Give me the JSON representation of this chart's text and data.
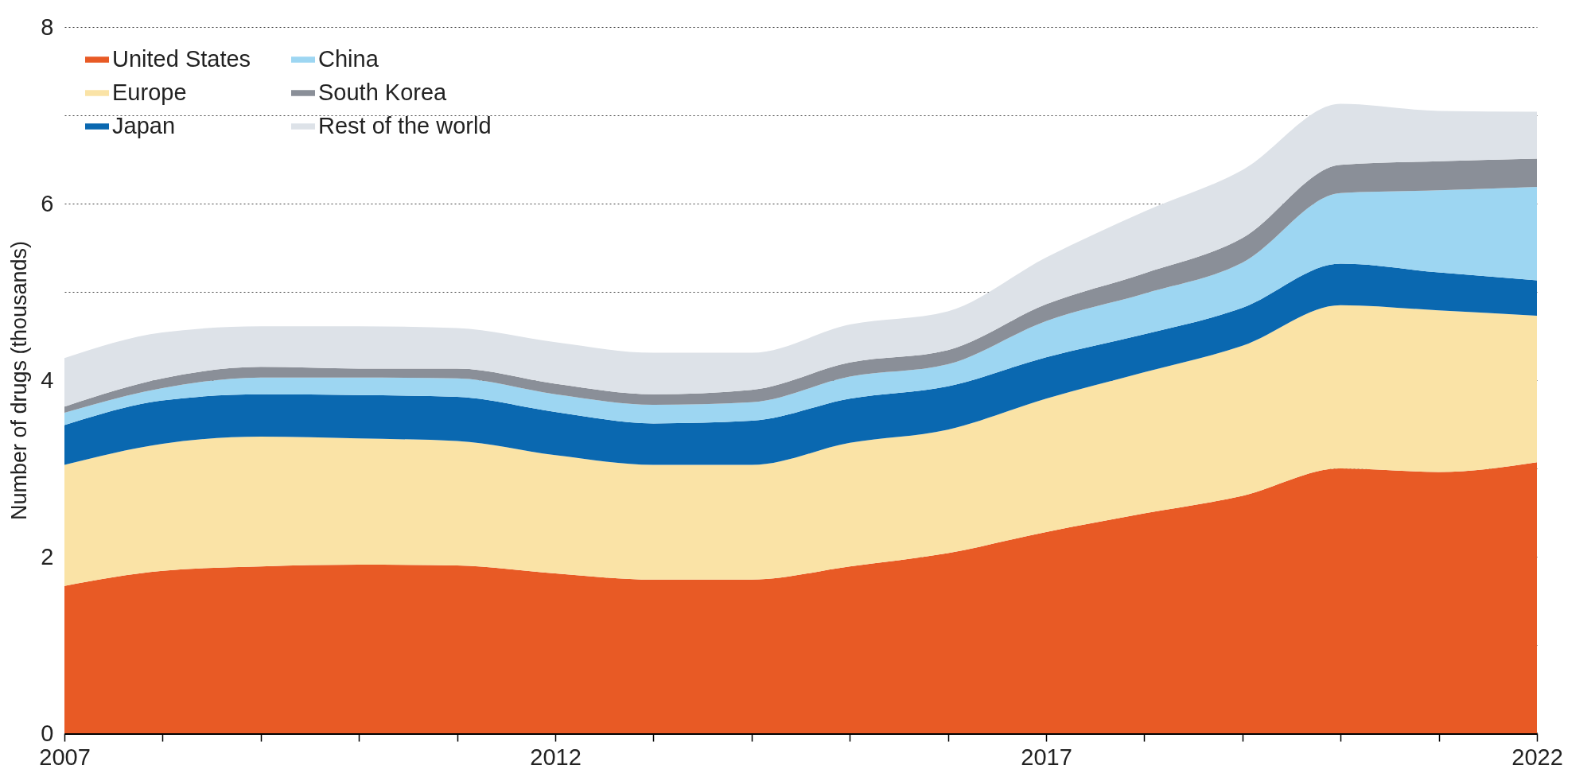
{
  "chart_data": {
    "type": "area",
    "stacked": true,
    "ylabel": "Number of drugs (thousands)",
    "x": [
      2007,
      2008,
      2009,
      2010,
      2011,
      2012,
      2013,
      2014,
      2015,
      2016,
      2017,
      2018,
      2019,
      2020,
      2021,
      2022
    ],
    "xlim": [
      2007,
      2022
    ],
    "xticks": [
      2007,
      {
        "value": 2008,
        "label": null
      },
      {
        "value": 2009,
        "label": null
      },
      {
        "value": 2010,
        "label": null
      },
      {
        "value": 2011,
        "label": null
      },
      2012,
      {
        "value": 2013,
        "label": null
      },
      {
        "value": 2014,
        "label": null
      },
      {
        "value": 2015,
        "label": null
      },
      {
        "value": 2016,
        "label": null
      },
      2017,
      {
        "value": 2018,
        "label": null
      },
      {
        "value": 2019,
        "label": null
      },
      {
        "value": 2020,
        "label": null
      },
      {
        "value": 2021,
        "label": null
      },
      2022
    ],
    "ylim": [
      0,
      8
    ],
    "yticks": [
      0,
      {
        "value": 1,
        "label": null
      },
      2,
      {
        "value": 3,
        "label": null
      },
      4,
      {
        "value": 5,
        "label": null
      },
      6,
      {
        "value": 7,
        "label": null
      },
      8
    ],
    "grid": "y",
    "legend": "top left",
    "series": [
      {
        "name": "United States",
        "color": "#e85a25",
        "values": [
          1.67,
          1.84,
          1.89,
          1.91,
          1.9,
          1.81,
          1.74,
          1.74,
          1.89,
          2.04,
          2.28,
          2.49,
          2.69,
          3.0,
          2.96,
          3.07
        ]
      },
      {
        "name": "Europe",
        "color": "#fae3a6",
        "values": [
          1.37,
          1.44,
          1.47,
          1.43,
          1.41,
          1.34,
          1.3,
          1.3,
          1.4,
          1.4,
          1.51,
          1.6,
          1.7,
          1.85,
          1.83,
          1.66
        ]
      },
      {
        "name": "Japan",
        "color": "#0a68b0",
        "values": [
          0.45,
          0.49,
          0.48,
          0.49,
          0.5,
          0.49,
          0.47,
          0.5,
          0.5,
          0.49,
          0.47,
          0.43,
          0.43,
          0.47,
          0.43,
          0.4
        ]
      },
      {
        "name": "China",
        "color": "#9dd6f2",
        "values": [
          0.14,
          0.14,
          0.19,
          0.2,
          0.21,
          0.2,
          0.21,
          0.21,
          0.25,
          0.25,
          0.41,
          0.46,
          0.51,
          0.8,
          0.93,
          1.06
        ]
      },
      {
        "name": "South Korea",
        "color": "#8a8f98",
        "values": [
          0.07,
          0.11,
          0.12,
          0.1,
          0.11,
          0.12,
          0.12,
          0.14,
          0.16,
          0.16,
          0.19,
          0.23,
          0.28,
          0.32,
          0.33,
          0.32
        ]
      },
      {
        "name": "Rest of the world",
        "color": "#dde2e8",
        "values": [
          0.55,
          0.52,
          0.46,
          0.48,
          0.46,
          0.47,
          0.47,
          0.42,
          0.43,
          0.44,
          0.53,
          0.7,
          0.77,
          0.69,
          0.57,
          0.53
        ]
      }
    ]
  }
}
